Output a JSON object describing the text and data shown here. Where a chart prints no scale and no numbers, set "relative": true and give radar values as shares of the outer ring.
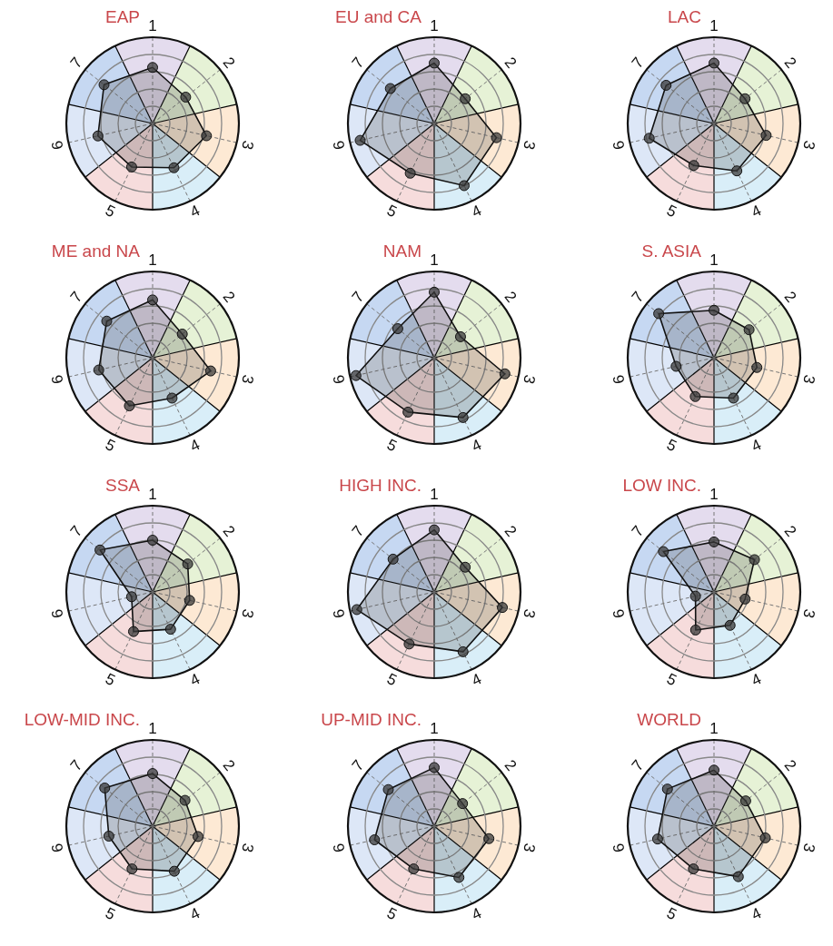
{
  "chart_data": [
    {
      "type": "radar",
      "title": "EAP",
      "categories": [
        "1",
        "2",
        "3",
        "4",
        "5",
        "6",
        "7"
      ],
      "relative": true,
      "grid": true,
      "marker": "circle",
      "colors": [
        "#e4dcee",
        "#e6f2d6",
        "#fde9d4",
        "#d9eef8",
        "#f6dcdc",
        "#dde7f7",
        "#c6d8f2"
      ],
      "series": [
        {
          "color": "#3a3a3a",
          "values": [
            0.65,
            0.49,
            0.64,
            0.57,
            0.56,
            0.65,
            0.72
          ]
        }
      ]
    },
    {
      "type": "radar",
      "title": "EU and CA",
      "categories": [
        "1",
        "2",
        "3",
        "4",
        "5",
        "6",
        "7"
      ],
      "relative": true,
      "grid": true,
      "marker": "circle",
      "colors": [
        "#e4dcee",
        "#e6f2d6",
        "#fde9d4",
        "#d9eef8",
        "#f6dcdc",
        "#dde7f7",
        "#c6d8f2"
      ],
      "series": [
        {
          "color": "#3a3a3a",
          "values": [
            0.7,
            0.46,
            0.74,
            0.8,
            0.64,
            0.88,
            0.65
          ]
        }
      ]
    },
    {
      "type": "radar",
      "title": "LAC",
      "categories": [
        "1",
        "2",
        "3",
        "4",
        "5",
        "6",
        "7"
      ],
      "relative": true,
      "grid": true,
      "marker": "circle",
      "colors": [
        "#e4dcee",
        "#e6f2d6",
        "#fde9d4",
        "#d9eef8",
        "#f6dcdc",
        "#dde7f7",
        "#c6d8f2"
      ],
      "series": [
        {
          "color": "#3a3a3a",
          "values": [
            0.7,
            0.46,
            0.62,
            0.61,
            0.54,
            0.77,
            0.71
          ]
        }
      ]
    },
    {
      "type": "radar",
      "title": "ME and NA",
      "categories": [
        "1",
        "2",
        "3",
        "4",
        "5",
        "6",
        "7"
      ],
      "relative": true,
      "grid": true,
      "marker": "circle",
      "colors": [
        "#e4dcee",
        "#e6f2d6",
        "#fde9d4",
        "#d9eef8",
        "#f6dcdc",
        "#dde7f7",
        "#c6d8f2"
      ],
      "series": [
        {
          "color": "#3a3a3a",
          "values": [
            0.67,
            0.44,
            0.69,
            0.52,
            0.62,
            0.64,
            0.68
          ]
        }
      ]
    },
    {
      "type": "radar",
      "title": "NAM",
      "categories": [
        "1",
        "2",
        "3",
        "4",
        "5",
        "6",
        "7"
      ],
      "relative": true,
      "grid": true,
      "marker": "circle",
      "colors": [
        "#e4dcee",
        "#e6f2d6",
        "#fde9d4",
        "#d9eef8",
        "#f6dcdc",
        "#dde7f7",
        "#c6d8f2"
      ],
      "series": [
        {
          "color": "#3a3a3a",
          "values": [
            0.76,
            0.39,
            0.84,
            0.77,
            0.7,
            0.93,
            0.54
          ]
        }
      ]
    },
    {
      "type": "radar",
      "title": "S. ASIA",
      "categories": [
        "1",
        "2",
        "3",
        "4",
        "5",
        "6",
        "7"
      ],
      "relative": true,
      "grid": true,
      "marker": "circle",
      "colors": [
        "#e4dcee",
        "#e6f2d6",
        "#fde9d4",
        "#d9eef8",
        "#f6dcdc",
        "#dde7f7",
        "#c6d8f2"
      ],
      "series": [
        {
          "color": "#3a3a3a",
          "values": [
            0.55,
            0.52,
            0.51,
            0.52,
            0.5,
            0.45,
            0.82
          ]
        }
      ]
    },
    {
      "type": "radar",
      "title": "SSA",
      "categories": [
        "1",
        "2",
        "3",
        "4",
        "5",
        "6",
        "7"
      ],
      "relative": true,
      "grid": true,
      "marker": "circle",
      "colors": [
        "#e4dcee",
        "#e6f2d6",
        "#fde9d4",
        "#d9eef8",
        "#f6dcdc",
        "#dde7f7",
        "#c6d8f2"
      ],
      "series": [
        {
          "color": "#3a3a3a",
          "values": [
            0.6,
            0.52,
            0.44,
            0.48,
            0.51,
            0.25,
            0.78
          ]
        }
      ]
    },
    {
      "type": "radar",
      "title": "HIGH INC.",
      "categories": [
        "1",
        "2",
        "3",
        "4",
        "5",
        "6",
        "7"
      ],
      "relative": true,
      "grid": true,
      "marker": "circle",
      "colors": [
        "#e4dcee",
        "#e6f2d6",
        "#fde9d4",
        "#d9eef8",
        "#f6dcdc",
        "#dde7f7",
        "#c6d8f2"
      ],
      "series": [
        {
          "color": "#3a3a3a",
          "values": [
            0.72,
            0.46,
            0.81,
            0.77,
            0.67,
            0.92,
            0.61
          ]
        }
      ]
    },
    {
      "type": "radar",
      "title": "LOW INC.",
      "categories": [
        "1",
        "2",
        "3",
        "4",
        "5",
        "6",
        "7"
      ],
      "relative": true,
      "grid": true,
      "marker": "circle",
      "colors": [
        "#e4dcee",
        "#e6f2d6",
        "#fde9d4",
        "#d9eef8",
        "#f6dcdc",
        "#dde7f7",
        "#c6d8f2"
      ],
      "series": [
        {
          "color": "#3a3a3a",
          "values": [
            0.58,
            0.6,
            0.37,
            0.43,
            0.49,
            0.22,
            0.75
          ]
        }
      ]
    },
    {
      "type": "radar",
      "title": "LOW-MID INC.",
      "categories": [
        "1",
        "2",
        "3",
        "4",
        "5",
        "6",
        "7"
      ],
      "relative": true,
      "grid": true,
      "marker": "circle",
      "colors": [
        "#e4dcee",
        "#e6f2d6",
        "#fde9d4",
        "#d9eef8",
        "#f6dcdc",
        "#dde7f7",
        "#c6d8f2"
      ],
      "series": [
        {
          "color": "#3a3a3a",
          "values": [
            0.61,
            0.48,
            0.54,
            0.58,
            0.55,
            0.52,
            0.71
          ]
        }
      ]
    },
    {
      "type": "radar",
      "title": "UP-MID INC.",
      "categories": [
        "1",
        "2",
        "3",
        "4",
        "5",
        "6",
        "7"
      ],
      "relative": true,
      "grid": true,
      "marker": "circle",
      "colors": [
        "#e4dcee",
        "#e6f2d6",
        "#fde9d4",
        "#d9eef8",
        "#f6dcdc",
        "#dde7f7",
        "#c6d8f2"
      ],
      "series": [
        {
          "color": "#3a3a3a",
          "values": [
            0.68,
            0.42,
            0.65,
            0.66,
            0.55,
            0.71,
            0.68
          ]
        }
      ]
    },
    {
      "type": "radar",
      "title": "WORLD",
      "categories": [
        "1",
        "2",
        "3",
        "4",
        "5",
        "6",
        "7"
      ],
      "relative": true,
      "grid": true,
      "marker": "circle",
      "colors": [
        "#e4dcee",
        "#e6f2d6",
        "#fde9d4",
        "#d9eef8",
        "#f6dcdc",
        "#dde7f7",
        "#c6d8f2"
      ],
      "series": [
        {
          "color": "#3a3a3a",
          "values": [
            0.65,
            0.47,
            0.61,
            0.65,
            0.55,
            0.67,
            0.69
          ]
        }
      ]
    }
  ]
}
